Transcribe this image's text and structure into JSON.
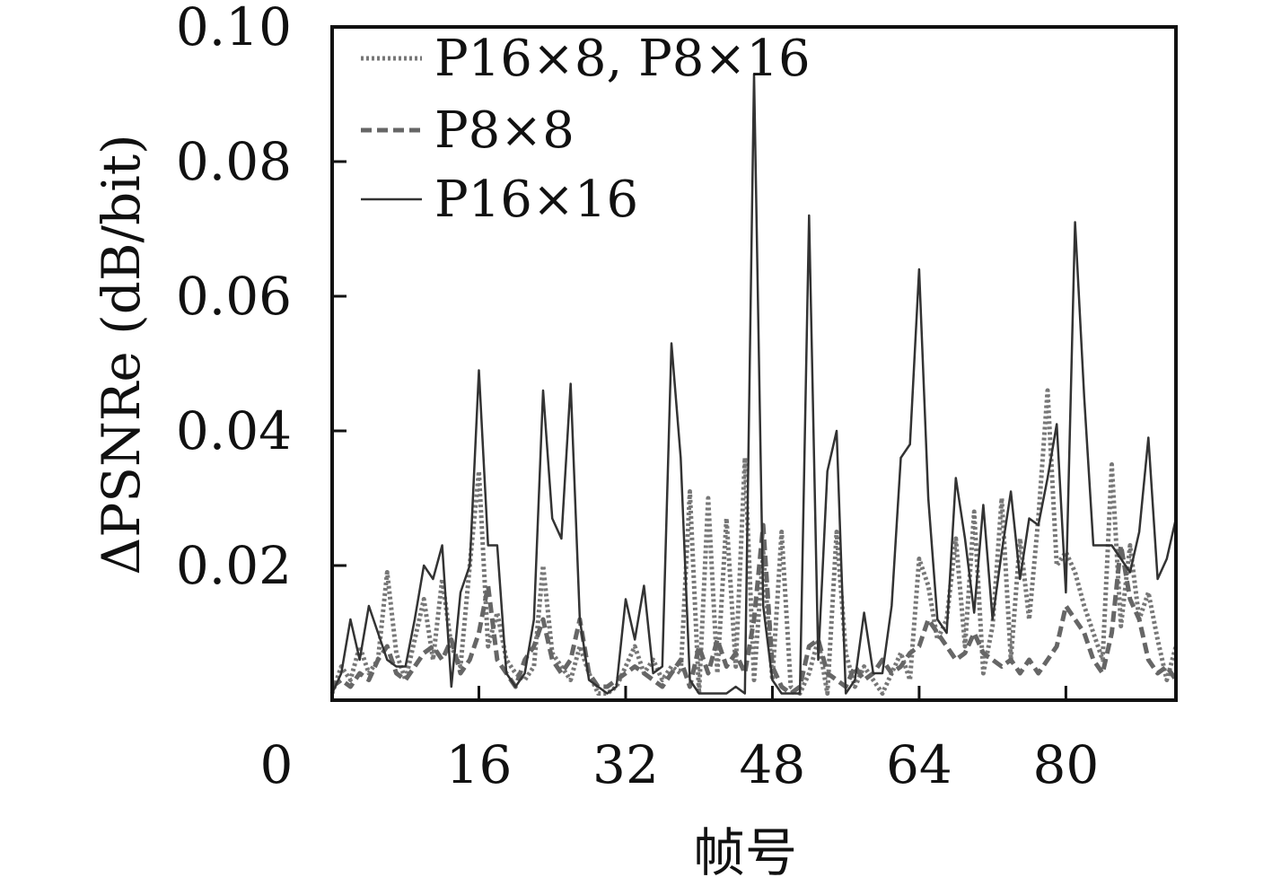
{
  "chart_data": {
    "type": "line",
    "title": "",
    "xlabel": "帧号",
    "ylabel": "ΔPSNRe (dB/bit)",
    "xlim": [
      0,
      92
    ],
    "ylim": [
      0,
      0.1
    ],
    "xticks": [
      {
        "value": 0,
        "label": "0"
      },
      {
        "value": 16,
        "label": "16"
      },
      {
        "value": 32,
        "label": "32"
      },
      {
        "value": 48,
        "label": "48"
      },
      {
        "value": 64,
        "label": "64"
      },
      {
        "value": 80,
        "label": "80"
      }
    ],
    "yticks": [
      {
        "value": 0.02,
        "label": "0.02"
      },
      {
        "value": 0.04,
        "label": "0.04"
      },
      {
        "value": 0.06,
        "label": "0.06"
      },
      {
        "value": 0.08,
        "label": "0.08"
      },
      {
        "value": 0.1,
        "label": "0.10"
      }
    ],
    "grid": false,
    "legend_position": "top-left",
    "series": [
      {
        "name": "P16×8, P8×16",
        "style": "dotted",
        "color": "#777777",
        "x": [
          0,
          1,
          2,
          3,
          4,
          5,
          6,
          7,
          8,
          9,
          10,
          11,
          12,
          13,
          14,
          15,
          16,
          17,
          18,
          19,
          20,
          21,
          22,
          23,
          24,
          25,
          26,
          27,
          28,
          29,
          30,
          31,
          32,
          33,
          34,
          35,
          36,
          37,
          38,
          39,
          40,
          41,
          42,
          43,
          44,
          45,
          46,
          47,
          48,
          49,
          50,
          51,
          52,
          53,
          54,
          55,
          56,
          57,
          58,
          59,
          60,
          61,
          62,
          63,
          64,
          65,
          66,
          67,
          68,
          69,
          70,
          71,
          72,
          73,
          74,
          75,
          76,
          77,
          78,
          79,
          80,
          81,
          82,
          83,
          84,
          85,
          86,
          87,
          88,
          89,
          90,
          91,
          92
        ],
        "y": [
          0.001,
          0.005,
          0.003,
          0.008,
          0.004,
          0.006,
          0.019,
          0.007,
          0.003,
          0.009,
          0.015,
          0.006,
          0.018,
          0.008,
          0.005,
          0.02,
          0.034,
          0.008,
          0.013,
          0.006,
          0.004,
          0.003,
          0.005,
          0.02,
          0.007,
          0.005,
          0.003,
          0.008,
          0.004,
          0.001,
          0.001,
          0.002,
          0.005,
          0.008,
          0.004,
          0.006,
          0.003,
          0.005,
          0.004,
          0.031,
          0.001,
          0.03,
          0.004,
          0.027,
          0.005,
          0.036,
          0.003,
          0.022,
          0.003,
          0.025,
          0.002,
          0.001,
          0.004,
          0.009,
          0.001,
          0.025,
          0.007,
          0.002,
          0.005,
          0.003,
          0.001,
          0.004,
          0.007,
          0.003,
          0.021,
          0.017,
          0.009,
          0.012,
          0.024,
          0.008,
          0.028,
          0.004,
          0.011,
          0.03,
          0.006,
          0.024,
          0.012,
          0.027,
          0.046,
          0.02,
          0.022,
          0.019,
          0.014,
          0.01,
          0.006,
          0.035,
          0.011,
          0.023,
          0.012,
          0.016,
          0.009,
          0.003,
          0.008
        ]
      },
      {
        "name": "P8×8",
        "style": "dashed",
        "color": "#666666",
        "x": [
          0,
          1,
          2,
          3,
          4,
          5,
          6,
          7,
          8,
          9,
          10,
          11,
          12,
          13,
          14,
          15,
          16,
          17,
          18,
          19,
          20,
          21,
          22,
          23,
          24,
          25,
          26,
          27,
          28,
          29,
          30,
          31,
          32,
          33,
          34,
          35,
          36,
          37,
          38,
          39,
          40,
          41,
          42,
          43,
          44,
          45,
          46,
          47,
          48,
          49,
          50,
          51,
          52,
          53,
          54,
          55,
          56,
          57,
          58,
          59,
          60,
          61,
          62,
          63,
          64,
          65,
          66,
          67,
          68,
          69,
          70,
          71,
          72,
          73,
          74,
          75,
          76,
          77,
          78,
          79,
          80,
          81,
          82,
          83,
          84,
          85,
          86,
          87,
          88,
          89,
          90,
          91,
          92
        ],
        "y": [
          0.002,
          0.003,
          0.002,
          0.004,
          0.003,
          0.006,
          0.008,
          0.004,
          0.003,
          0.005,
          0.007,
          0.008,
          0.006,
          0.009,
          0.004,
          0.006,
          0.01,
          0.017,
          0.006,
          0.004,
          0.002,
          0.006,
          0.008,
          0.012,
          0.006,
          0.004,
          0.006,
          0.012,
          0.004,
          0.002,
          0.002,
          0.003,
          0.004,
          0.005,
          0.004,
          0.003,
          0.002,
          0.004,
          0.006,
          0.002,
          0.008,
          0.004,
          0.009,
          0.005,
          0.007,
          0.004,
          0.012,
          0.026,
          0.005,
          0.002,
          0.001,
          0.002,
          0.008,
          0.009,
          0.004,
          0.003,
          0.002,
          0.005,
          0.003,
          0.004,
          0.006,
          0.004,
          0.005,
          0.007,
          0.008,
          0.012,
          0.01,
          0.008,
          0.006,
          0.007,
          0.01,
          0.007,
          0.006,
          0.005,
          0.006,
          0.004,
          0.006,
          0.004,
          0.006,
          0.008,
          0.014,
          0.012,
          0.01,
          0.006,
          0.004,
          0.01,
          0.023,
          0.015,
          0.012,
          0.006,
          0.004,
          0.005,
          0.003
        ]
      },
      {
        "name": "P16×16",
        "style": "solid",
        "color": "#333333",
        "x": [
          0,
          1,
          2,
          3,
          4,
          5,
          6,
          7,
          8,
          9,
          10,
          11,
          12,
          13,
          14,
          15,
          16,
          17,
          18,
          19,
          20,
          21,
          22,
          23,
          24,
          25,
          26,
          27,
          28,
          29,
          30,
          31,
          32,
          33,
          34,
          35,
          36,
          37,
          38,
          39,
          40,
          41,
          42,
          43,
          44,
          45,
          46,
          47,
          48,
          49,
          50,
          51,
          52,
          53,
          54,
          55,
          56,
          57,
          58,
          59,
          60,
          61,
          62,
          63,
          64,
          65,
          66,
          67,
          68,
          69,
          70,
          71,
          72,
          73,
          74,
          75,
          76,
          77,
          78,
          79,
          80,
          81,
          82,
          83,
          84,
          85,
          86,
          87,
          88,
          89,
          90,
          91,
          92
        ],
        "y": [
          0.001,
          0.004,
          0.012,
          0.006,
          0.014,
          0.01,
          0.006,
          0.005,
          0.005,
          0.012,
          0.02,
          0.018,
          0.023,
          0.002,
          0.016,
          0.02,
          0.049,
          0.023,
          0.023,
          0.004,
          0.002,
          0.004,
          0.012,
          0.046,
          0.027,
          0.024,
          0.047,
          0.012,
          0.003,
          0.002,
          0.001,
          0.002,
          0.015,
          0.009,
          0.017,
          0.004,
          0.005,
          0.053,
          0.036,
          0.003,
          0.001,
          0.001,
          0.001,
          0.001,
          0.002,
          0.001,
          0.093,
          0.014,
          0.003,
          0.001,
          0.001,
          0.001,
          0.072,
          0.006,
          0.034,
          0.04,
          0.001,
          0.003,
          0.013,
          0.004,
          0.004,
          0.014,
          0.036,
          0.038,
          0.064,
          0.03,
          0.012,
          0.01,
          0.033,
          0.024,
          0.013,
          0.029,
          0.012,
          0.022,
          0.031,
          0.018,
          0.027,
          0.026,
          0.033,
          0.041,
          0.016,
          0.071,
          0.045,
          0.023,
          0.023,
          0.023,
          0.021,
          0.019,
          0.025,
          0.039,
          0.018,
          0.021,
          0.027
        ]
      }
    ]
  }
}
